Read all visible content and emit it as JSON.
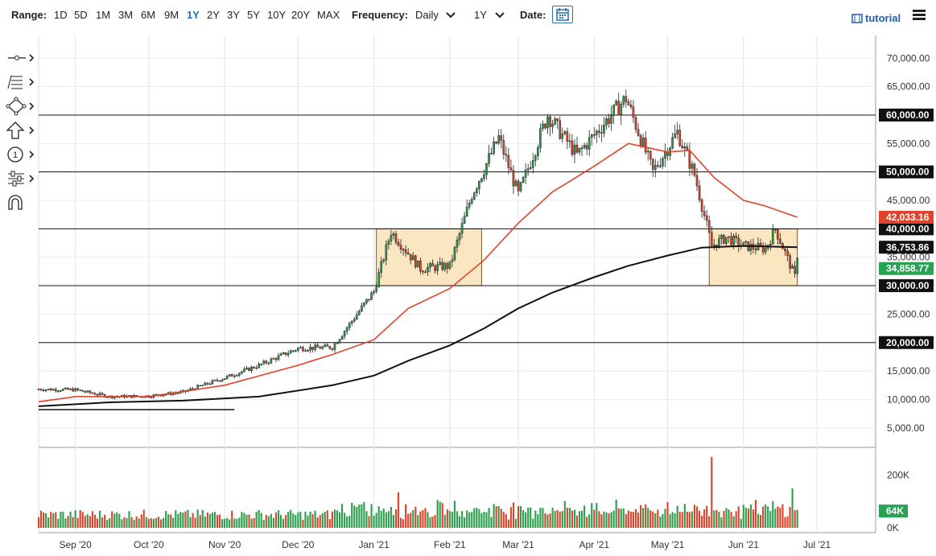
{
  "toolbar": {
    "range_label": "Range:",
    "ranges": [
      "1D",
      "5D",
      "1M",
      "3M",
      "6M",
      "9M",
      "1Y",
      "2Y",
      "3Y",
      "5Y",
      "10Y",
      "20Y",
      "MAX"
    ],
    "active_range": "1Y",
    "frequency_label": "Frequency:",
    "frequency_value": "Daily",
    "period_value": "1Y",
    "date_label": "Date:",
    "tutorial_label": "tutorial"
  },
  "tools": {
    "icons": [
      "crosshair-line-icon",
      "fib-lines-icon",
      "shape-icon",
      "arrow-up-icon",
      "numbered-marker-icon",
      "sliders-icon",
      "magnet-icon"
    ]
  },
  "colors": {
    "candle_up": "#2e9e4f",
    "candle_down": "#e0432b",
    "ma_fast": "#e0432b",
    "ma_slow": "#111111",
    "box_fill": "#fbe6c2",
    "box_stroke": "#7a5a2a",
    "price_badge": "#27a353"
  },
  "chart_data": {
    "type": "candlestick",
    "y_axis_price": {
      "ticks": [
        5000,
        10000,
        15000,
        20000,
        25000,
        30000,
        35000,
        40000,
        45000,
        50000,
        55000,
        60000,
        65000,
        70000
      ],
      "tick_labels": [
        "5,000.00",
        "10,000.00",
        "15,000.00",
        "20,000.00",
        "25,000.00",
        "30,000.00",
        "35,000.00",
        "40,000.00",
        "45,000.00",
        "50,000.00",
        "55,000.00",
        "60,000.00",
        "65,000.00",
        "70,000.00"
      ],
      "range": [
        2000,
        74000
      ]
    },
    "y_axis_volume": {
      "tick_labels": [
        "200K",
        "0K"
      ],
      "ticks": [
        200000,
        0
      ],
      "range": [
        0,
        300000
      ]
    },
    "x_axis": {
      "tick_labels": [
        "Sep '20",
        "Oct '20",
        "Nov '20",
        "Dec '20",
        "Jan '21",
        "Feb '21",
        "Mar '21",
        "Apr '21",
        "May '21",
        "Jun '21",
        "Jul '21"
      ],
      "tick_dates": [
        "2020-09-01",
        "2020-10-01",
        "2020-11-01",
        "2020-12-01",
        "2021-01-01",
        "2021-02-01",
        "2021-03-01",
        "2021-04-01",
        "2021-05-01",
        "2021-06-01",
        "2021-07-01"
      ],
      "range": [
        "2020-08-17",
        "2021-07-25"
      ]
    },
    "horizontal_levels": [
      20000,
      30000,
      40000,
      50000,
      60000
    ],
    "level_labels": [
      "20,000.00",
      "30,000.00",
      "40,000.00",
      "50,000.00",
      "60,000.00"
    ],
    "consolidation_boxes": [
      {
        "start": "2021-01-02",
        "end": "2021-02-14",
        "low": 30000,
        "high": 40000
      },
      {
        "start": "2021-05-18",
        "end": "2021-06-23",
        "low": 30000,
        "high": 40000
      }
    ],
    "support_line": {
      "start": "2020-08-17",
      "end": "2020-11-05",
      "value": 8200
    },
    "moving_average_fast_label": "42,033.16",
    "moving_average_slow_label": "36,753.86",
    "last_price_label": "34,858.77",
    "last_volume_label": "64K",
    "anchors": {
      "dates": [
        "2020-08-17",
        "2020-09-01",
        "2020-09-15",
        "2020-10-01",
        "2020-10-15",
        "2020-11-01",
        "2020-11-15",
        "2020-12-01",
        "2020-12-15",
        "2021-01-01",
        "2021-01-08",
        "2021-01-20",
        "2021-02-01",
        "2021-02-10",
        "2021-02-21",
        "2021-03-01",
        "2021-03-13",
        "2021-03-25",
        "2021-04-05",
        "2021-04-14",
        "2021-04-25",
        "2021-05-05",
        "2021-05-12",
        "2021-05-19",
        "2021-05-25",
        "2021-06-01",
        "2021-06-10",
        "2021-06-14",
        "2021-06-18",
        "2021-06-22",
        "2021-06-23"
      ],
      "close": [
        11800,
        11700,
        10500,
        10600,
        11300,
        13800,
        16000,
        19000,
        19200,
        29000,
        39500,
        33000,
        33500,
        46000,
        56000,
        46000,
        60000,
        53000,
        58500,
        63000,
        50000,
        57000,
        49500,
        37000,
        38500,
        37000,
        36500,
        40000,
        35800,
        31600,
        34858.77
      ]
    },
    "ma_fast": {
      "dates": [
        "2020-08-17",
        "2020-09-01",
        "2020-10-01",
        "2020-11-01",
        "2020-12-01",
        "2020-12-15",
        "2021-01-01",
        "2021-01-15",
        "2021-02-01",
        "2021-02-15",
        "2021-03-01",
        "2021-03-15",
        "2021-04-01",
        "2021-04-15",
        "2021-05-01",
        "2021-05-10",
        "2021-05-20",
        "2021-06-01",
        "2021-06-10",
        "2021-06-23"
      ],
      "values": [
        9600,
        10500,
        10500,
        12500,
        16000,
        17900,
        20500,
        26000,
        29500,
        34500,
        41000,
        46500,
        51000,
        55000,
        53500,
        53800,
        49000,
        45000,
        44000,
        42033.16
      ]
    },
    "ma_slow": {
      "dates": [
        "2020-08-17",
        "2020-09-15",
        "2020-10-15",
        "2020-11-15",
        "2020-12-15",
        "2021-01-01",
        "2021-01-15",
        "2021-02-01",
        "2021-02-15",
        "2021-03-01",
        "2021-03-15",
        "2021-04-01",
        "2021-04-15",
        "2021-05-01",
        "2021-05-15",
        "2021-06-01",
        "2021-06-23"
      ],
      "values": [
        8800,
        9500,
        9800,
        10500,
        12500,
        14200,
        16800,
        19500,
        22500,
        26000,
        28800,
        31500,
        33500,
        35300,
        36700,
        37000,
        36753.86
      ]
    },
    "volume": {
      "note_dates_high": [
        "2021-01-11",
        "2021-05-19",
        "2021-06-21"
      ],
      "values_high": [
        135000,
        270000,
        150000
      ]
    }
  }
}
